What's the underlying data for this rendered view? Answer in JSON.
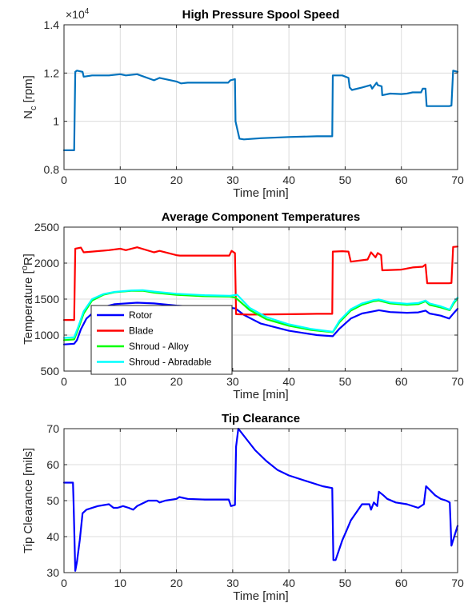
{
  "chart_data": [
    {
      "type": "line",
      "title": "High Pressure Spool Speed",
      "xlabel": "Time [min]",
      "ylabel_main": "N",
      "ylabel_sub": "c",
      "ylabel_rest": " [rpm]",
      "exponent_base": "×10",
      "exponent_power": "4",
      "xlim": [
        0,
        70
      ],
      "ylim": [
        0.8,
        1.4
      ],
      "xticks": [
        "0",
        "10",
        "20",
        "30",
        "40",
        "50",
        "60",
        "70"
      ],
      "yticks": [
        "0.8",
        "1",
        "1.2",
        "1.4"
      ],
      "xtick_values": [
        0,
        10,
        20,
        30,
        40,
        50,
        60,
        70
      ],
      "ytick_values": [
        0.8,
        1.0,
        1.2,
        1.4
      ],
      "grid": true,
      "legend": "none",
      "series": [
        {
          "color": "#0072BD",
          "x": [
            0,
            1.8,
            2.0,
            2.3,
            3.3,
            3.5,
            5,
            8,
            10,
            11,
            13,
            16,
            17,
            20,
            20.8,
            22,
            25,
            29.2,
            29.6,
            30.4,
            30.5,
            31.2,
            32,
            35,
            40,
            45,
            47.7,
            47.8,
            49.5,
            50.6,
            50.8,
            51.2,
            53,
            54.5,
            54.8,
            55.6,
            55.8,
            56.5,
            56.6,
            58,
            60,
            61,
            62,
            63.5,
            63.8,
            64.3,
            64.5,
            66,
            68.5,
            68.9,
            69.2,
            70
          ],
          "y": [
            0.88,
            0.88,
            1.205,
            1.21,
            1.205,
            1.185,
            1.19,
            1.19,
            1.195,
            1.19,
            1.195,
            1.17,
            1.18,
            1.165,
            1.157,
            1.16,
            1.16,
            1.16,
            1.17,
            1.175,
            1.0,
            0.928,
            0.925,
            0.93,
            0.935,
            0.938,
            0.938,
            1.19,
            1.19,
            1.18,
            1.14,
            1.13,
            1.14,
            1.15,
            1.135,
            1.16,
            1.15,
            1.145,
            1.108,
            1.115,
            1.113,
            1.115,
            1.12,
            1.12,
            1.135,
            1.135,
            1.063,
            1.063,
            1.063,
            1.065,
            1.21,
            1.205
          ]
        }
      ]
    },
    {
      "type": "line",
      "title": "Average Component Temperatures",
      "xlabel": "Time [min]",
      "ylabel_main": "Temperature [",
      "ylabel_sup": "o",
      "ylabel_rest": "R]",
      "xlim": [
        0,
        70
      ],
      "ylim": [
        500,
        2500
      ],
      "xticks": [
        "0",
        "10",
        "20",
        "30",
        "40",
        "50",
        "60",
        "70"
      ],
      "yticks": [
        "500",
        "1000",
        "1500",
        "2000",
        "2500"
      ],
      "xtick_values": [
        0,
        10,
        20,
        30,
        40,
        50,
        60,
        70
      ],
      "ytick_values": [
        500,
        1000,
        1500,
        2000,
        2500
      ],
      "grid": true,
      "legend": "bottom-left",
      "series": [
        {
          "name": "Rotor",
          "color": "#0000FF",
          "x": [
            0,
            1.8,
            2.3,
            3,
            4,
            6,
            9,
            13,
            16,
            20,
            25,
            29.5,
            30.5,
            32,
            35,
            40,
            45,
            47.8,
            49,
            51,
            53,
            55,
            56,
            58,
            61,
            63,
            64.3,
            65,
            67,
            68.5,
            69.3,
            70
          ],
          "y": [
            870,
            880,
            930,
            1080,
            1230,
            1370,
            1430,
            1450,
            1440,
            1410,
            1385,
            1380,
            1370,
            1280,
            1160,
            1060,
            1000,
            985,
            1090,
            1230,
            1300,
            1330,
            1345,
            1320,
            1310,
            1315,
            1340,
            1300,
            1270,
            1230,
            1305,
            1365
          ]
        },
        {
          "name": "Blade",
          "color": "#FF0000",
          "x": [
            0,
            1.8,
            2.0,
            3,
            3.5,
            5,
            8,
            10,
            11,
            13,
            16,
            17,
            20,
            20.6,
            25,
            29.4,
            29.8,
            30.4,
            30.6,
            33,
            40,
            45,
            47.7,
            47.8,
            49.5,
            50.6,
            51,
            54,
            54.6,
            55.4,
            55.8,
            56.4,
            56.6,
            60,
            62,
            63.8,
            64.3,
            64.6,
            66,
            68.5,
            68.9,
            69.2,
            70
          ],
          "y": [
            1210,
            1210,
            2200,
            2215,
            2150,
            2160,
            2180,
            2200,
            2180,
            2220,
            2150,
            2170,
            2110,
            2105,
            2105,
            2105,
            2170,
            2140,
            1290,
            1285,
            1290,
            1295,
            1295,
            2160,
            2165,
            2160,
            2020,
            2050,
            2150,
            2080,
            2140,
            2110,
            1900,
            1910,
            1940,
            1950,
            1980,
            1720,
            1720,
            1720,
            1725,
            2225,
            2230
          ]
        },
        {
          "name": "Shroud - Alloy",
          "color": "#00FF00",
          "x": [
            0,
            1.8,
            2.5,
            3.5,
            5,
            7,
            9,
            12,
            14,
            16,
            20,
            25,
            29.5,
            30.5,
            33,
            36,
            40,
            44,
            47.8,
            49,
            51,
            53,
            55,
            56,
            58,
            61,
            63,
            64.3,
            65,
            67,
            68.6,
            69.3,
            70
          ],
          "y": [
            930,
            940,
            1080,
            1300,
            1480,
            1560,
            1595,
            1615,
            1615,
            1590,
            1560,
            1540,
            1535,
            1520,
            1350,
            1220,
            1130,
            1070,
            1040,
            1180,
            1340,
            1420,
            1470,
            1480,
            1440,
            1420,
            1430,
            1470,
            1420,
            1385,
            1345,
            1440,
            1510
          ]
        },
        {
          "name": "Shroud - Abradable",
          "color": "#00FFFF",
          "x": [
            0,
            1.8,
            2.5,
            3.5,
            5,
            7,
            9,
            12,
            14,
            16,
            20,
            25,
            29.5,
            30.8,
            33,
            36,
            40,
            44,
            47.8,
            49,
            51,
            53,
            55,
            56,
            58,
            61,
            63,
            64.3,
            65,
            67,
            68.6,
            69.3,
            70
          ],
          "y": [
            960,
            970,
            1110,
            1330,
            1500,
            1570,
            1600,
            1620,
            1625,
            1605,
            1575,
            1555,
            1545,
            1560,
            1380,
            1250,
            1150,
            1085,
            1045,
            1200,
            1360,
            1440,
            1485,
            1495,
            1455,
            1435,
            1445,
            1480,
            1440,
            1400,
            1355,
            1460,
            1520
          ]
        }
      ]
    },
    {
      "type": "line",
      "title": "Tip Clearance",
      "xlabel": "Time [min]",
      "ylabel_main": "Tip Clearance [mils]",
      "xlim": [
        0,
        70
      ],
      "ylim": [
        30,
        70
      ],
      "xticks": [
        "0",
        "10",
        "20",
        "30",
        "40",
        "50",
        "60",
        "70"
      ],
      "yticks": [
        "30",
        "40",
        "50",
        "60",
        "70"
      ],
      "xtick_values": [
        0,
        10,
        20,
        30,
        40,
        50,
        60,
        70
      ],
      "ytick_values": [
        30,
        40,
        50,
        60,
        70
      ],
      "grid": true,
      "legend": "none",
      "series": [
        {
          "color": "#0000FF",
          "x": [
            0,
            1.6,
            1.7,
            2.0,
            2.3,
            2.8,
            3.3,
            4,
            6,
            8,
            8.8,
            9.5,
            10.5,
            11.5,
            12.3,
            13,
            15,
            16.5,
            17,
            18,
            20,
            20.5,
            22,
            25,
            29.3,
            29.7,
            30.4,
            30.6,
            31,
            32,
            34,
            36,
            38,
            40,
            43,
            46,
            47.7,
            47.9,
            48.3,
            49.5,
            50.2,
            51,
            53,
            54.3,
            54.6,
            55.1,
            55.7,
            56,
            56.8,
            57.5,
            59,
            61,
            63,
            64,
            64.4,
            66,
            67,
            68,
            68.6,
            68.9,
            69.4,
            70
          ],
          "y": [
            55,
            55,
            50,
            30.5,
            33,
            39,
            46.5,
            47.5,
            48.5,
            49,
            48,
            48,
            48.5,
            48,
            47.5,
            48.5,
            50,
            50,
            49.5,
            50,
            50.5,
            51,
            50.5,
            50.3,
            50.3,
            48.5,
            48.8,
            65,
            70,
            68,
            64,
            61,
            58.5,
            57,
            55.5,
            54,
            53.5,
            33.5,
            33.5,
            39,
            41.5,
            44.5,
            49,
            49,
            47.5,
            49.5,
            48.5,
            52.5,
            51.5,
            50.5,
            49.5,
            49,
            48,
            49,
            54,
            51.5,
            50.5,
            50,
            49.5,
            37.5,
            40,
            43
          ]
        }
      ]
    }
  ]
}
